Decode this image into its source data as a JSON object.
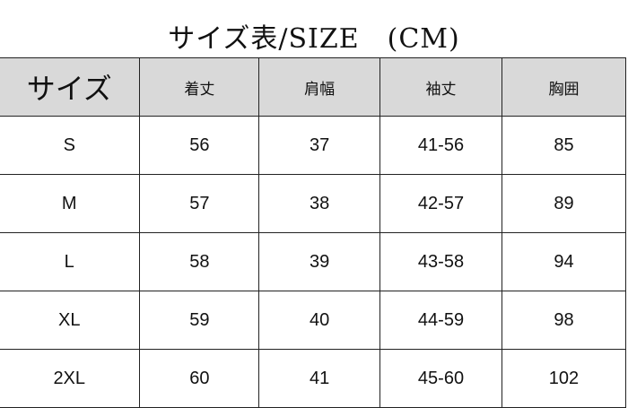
{
  "title": "サイズ表/SIZE　(CM)",
  "headers": [
    "サイズ",
    "着丈",
    "肩幅",
    "袖丈",
    "胸囲"
  ],
  "rows": [
    [
      "S",
      "56",
      "37",
      "41-56",
      "85"
    ],
    [
      "M",
      "57",
      "38",
      "42-57",
      "89"
    ],
    [
      "L",
      "58",
      "39",
      "43-58",
      "94"
    ],
    [
      "XL",
      "59",
      "40",
      "44-59",
      "98"
    ],
    [
      "2XL",
      "60",
      "41",
      "45-60",
      "102"
    ]
  ],
  "colors": {
    "header_bg": "#d9d9d9",
    "border": "#222222"
  }
}
